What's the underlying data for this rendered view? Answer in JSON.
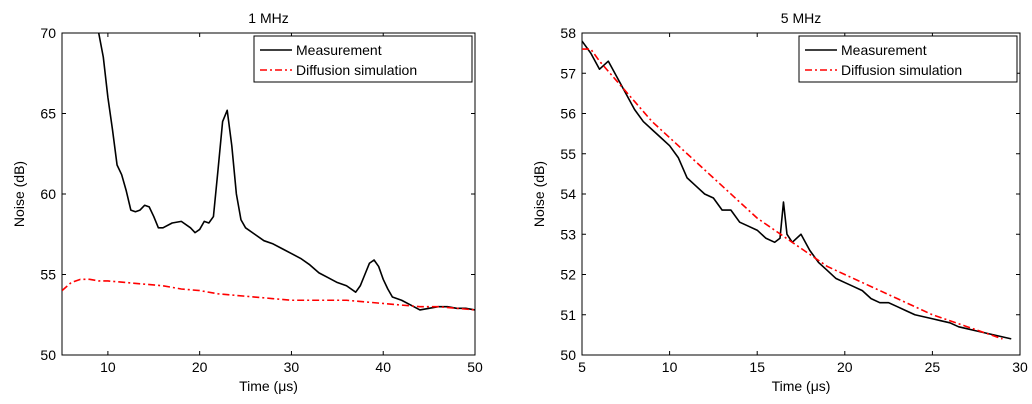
{
  "chart_data": [
    {
      "type": "line",
      "title": "1 MHz",
      "xlabel": "Time (μs)",
      "ylabel": "Noise (dB)",
      "xlim": [
        5,
        50
      ],
      "ylim": [
        50,
        70
      ],
      "xticks": [
        "10",
        "20",
        "30",
        "40",
        "50"
      ],
      "yticks": [
        "50",
        "55",
        "60",
        "65",
        "70"
      ],
      "grid": false,
      "legend_position": "top-right",
      "series": [
        {
          "name": "Measurement",
          "color": "#000000",
          "style": "solid",
          "x": [
            9,
            9.5,
            10,
            10.5,
            11,
            11.5,
            12,
            12.5,
            13,
            13.5,
            14,
            14.5,
            15,
            15.5,
            16,
            17,
            18,
            19,
            19.5,
            20,
            20.5,
            21,
            21.5,
            22,
            22.5,
            23,
            23.5,
            24,
            24.5,
            25,
            26,
            27,
            28,
            29,
            30,
            31,
            32,
            33,
            34,
            35,
            36,
            37,
            37.5,
            38,
            38.5,
            39,
            39.5,
            40,
            40.5,
            41,
            42,
            43,
            44,
            45,
            46,
            47,
            48,
            49,
            50
          ],
          "y": [
            70,
            68.5,
            66,
            64,
            61.8,
            61.2,
            60.2,
            59,
            58.9,
            59,
            59.3,
            59.2,
            58.6,
            57.9,
            57.9,
            58.2,
            58.3,
            57.9,
            57.6,
            57.8,
            58.3,
            58.2,
            58.6,
            61.5,
            64.5,
            65.2,
            63,
            60,
            58.4,
            57.9,
            57.5,
            57.1,
            56.9,
            56.6,
            56.3,
            56,
            55.6,
            55.1,
            54.8,
            54.5,
            54.3,
            53.9,
            54.3,
            55,
            55.7,
            55.9,
            55.5,
            54.7,
            54.1,
            53.6,
            53.4,
            53.1,
            52.8,
            52.9,
            53,
            53,
            52.9,
            52.9,
            52.8
          ]
        },
        {
          "name": "Diffusion simulation",
          "color": "#ff0000",
          "style": "dashdot",
          "x": [
            5,
            6,
            7,
            8,
            9,
            10,
            12,
            14,
            16,
            18,
            20,
            22,
            24,
            26,
            28,
            30,
            32,
            34,
            36,
            38,
            40,
            42,
            44,
            46,
            48,
            50
          ],
          "y": [
            54.0,
            54.5,
            54.7,
            54.7,
            54.6,
            54.6,
            54.5,
            54.4,
            54.3,
            54.1,
            54.0,
            53.8,
            53.7,
            53.6,
            53.5,
            53.4,
            53.4,
            53.4,
            53.4,
            53.3,
            53.2,
            53.1,
            53.0,
            53.0,
            52.9,
            52.8
          ]
        }
      ]
    },
    {
      "type": "line",
      "title": "5 MHz",
      "xlabel": "Time (μs)",
      "ylabel": "Noise (dB)",
      "xlim": [
        5,
        30
      ],
      "ylim": [
        50,
        58
      ],
      "xticks": [
        "5",
        "10",
        "15",
        "20",
        "25",
        "30"
      ],
      "yticks": [
        "50",
        "51",
        "52",
        "53",
        "54",
        "55",
        "56",
        "57",
        "58"
      ],
      "grid": false,
      "legend_position": "top-right",
      "series": [
        {
          "name": "Measurement",
          "color": "#000000",
          "style": "solid",
          "x": [
            5,
            5.5,
            6,
            6.5,
            7,
            7.5,
            8,
            8.5,
            9,
            9.5,
            10,
            10.5,
            11,
            11.5,
            12,
            12.5,
            13,
            13.5,
            14,
            14.5,
            15,
            15.5,
            16,
            16.3,
            16.5,
            16.7,
            17,
            17.5,
            18,
            18.5,
            19,
            19.5,
            20,
            20.5,
            21,
            21.5,
            22,
            22.5,
            23,
            23.5,
            24,
            24.5,
            25,
            25.5,
            26,
            26.5,
            27,
            27.5,
            28,
            28.5,
            29,
            29.5
          ],
          "y": [
            57.8,
            57.5,
            57.1,
            57.3,
            56.9,
            56.5,
            56.1,
            55.8,
            55.6,
            55.4,
            55.2,
            54.9,
            54.4,
            54.2,
            54.0,
            53.9,
            53.6,
            53.6,
            53.3,
            53.2,
            53.1,
            52.9,
            52.8,
            52.9,
            53.8,
            53.0,
            52.8,
            53.0,
            52.6,
            52.3,
            52.1,
            51.9,
            51.8,
            51.7,
            51.6,
            51.4,
            51.3,
            51.3,
            51.2,
            51.1,
            51.0,
            50.95,
            50.9,
            50.85,
            50.8,
            50.7,
            50.65,
            50.6,
            50.55,
            50.5,
            50.45,
            50.4
          ]
        },
        {
          "name": "Diffusion simulation",
          "color": "#ff0000",
          "style": "dashdot",
          "x": [
            5,
            5.5,
            6,
            7,
            8,
            9,
            10,
            11,
            12,
            13,
            14,
            15,
            16,
            17,
            18,
            19,
            20,
            21,
            22,
            23,
            24,
            25,
            26,
            27,
            28,
            29
          ],
          "y": [
            57.6,
            57.6,
            57.3,
            56.8,
            56.3,
            55.8,
            55.4,
            55.0,
            54.6,
            54.2,
            53.8,
            53.4,
            53.1,
            52.8,
            52.5,
            52.2,
            52.0,
            51.8,
            51.6,
            51.4,
            51.2,
            51.0,
            50.85,
            50.7,
            50.55,
            50.4
          ]
        }
      ]
    }
  ]
}
